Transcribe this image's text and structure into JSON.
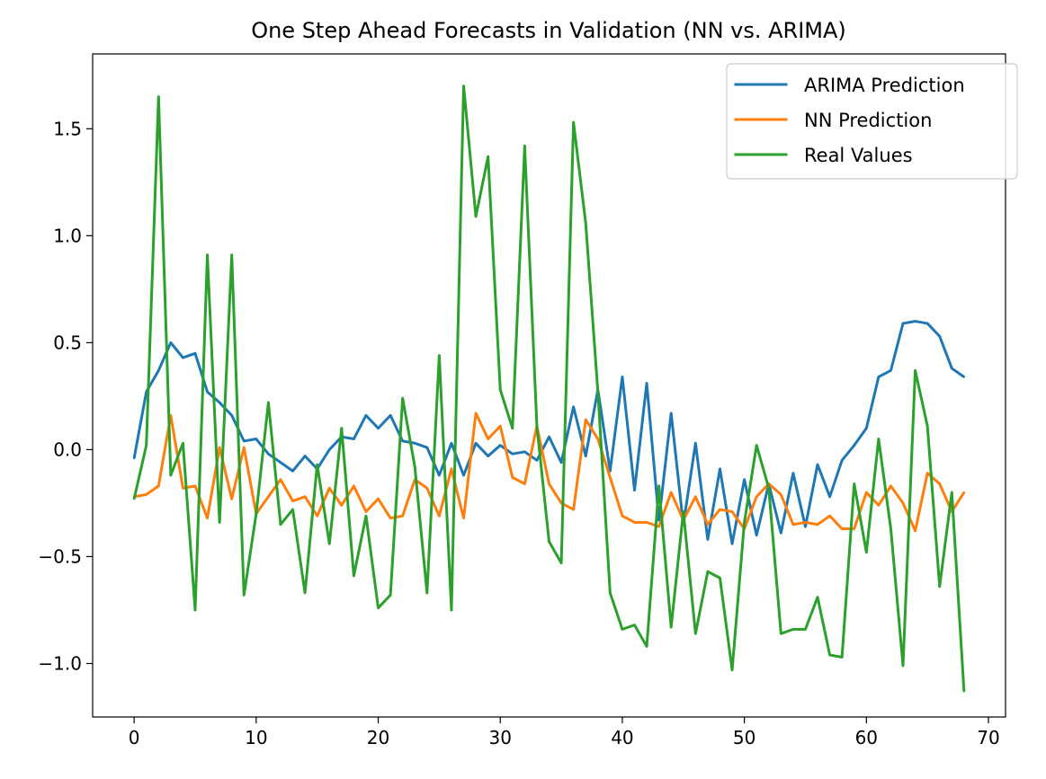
{
  "chart_data": {
    "type": "line",
    "title": "One Step Ahead Forecasts in Validation (NN vs. ARIMA)",
    "xlabel": "",
    "ylabel": "",
    "xlim": [
      -3.4,
      71.4
    ],
    "ylim": [
      -1.25,
      1.85
    ],
    "xticks": [
      0,
      10,
      20,
      30,
      40,
      50,
      60,
      70
    ],
    "yticks": [
      -1.0,
      -0.5,
      0.0,
      0.5,
      1.0,
      1.5
    ],
    "ytick_labels": [
      "−1.0",
      "−0.5",
      "0.0",
      "0.5",
      "1.0",
      "1.5"
    ],
    "grid": false,
    "legend_position": "top-right",
    "x": [
      0,
      1,
      2,
      3,
      4,
      5,
      6,
      7,
      8,
      9,
      10,
      11,
      12,
      13,
      14,
      15,
      16,
      17,
      18,
      19,
      20,
      21,
      22,
      23,
      24,
      25,
      26,
      27,
      28,
      29,
      30,
      31,
      32,
      33,
      34,
      35,
      36,
      37,
      38,
      39,
      40,
      41,
      42,
      43,
      44,
      45,
      46,
      47,
      48,
      49,
      50,
      51,
      52,
      53,
      54,
      55,
      56,
      57,
      58,
      59,
      60,
      61,
      62,
      63,
      64,
      65,
      66,
      67,
      68
    ],
    "series": [
      {
        "name": "ARIMA Prediction",
        "color": "#1f77b4",
        "values": [
          -0.04,
          0.27,
          0.37,
          0.5,
          0.43,
          0.45,
          0.27,
          0.22,
          0.16,
          0.04,
          0.05,
          -0.02,
          -0.06,
          -0.1,
          -0.03,
          -0.09,
          0.0,
          0.06,
          0.05,
          0.16,
          0.1,
          0.16,
          0.04,
          0.03,
          0.01,
          -0.12,
          0.03,
          -0.12,
          0.03,
          -0.03,
          0.02,
          -0.02,
          -0.01,
          -0.05,
          0.06,
          -0.06,
          0.2,
          -0.03,
          0.28,
          -0.1,
          0.34,
          -0.19,
          0.31,
          -0.33,
          0.17,
          -0.35,
          0.03,
          -0.42,
          -0.09,
          -0.44,
          -0.14,
          -0.4,
          -0.16,
          -0.39,
          -0.11,
          -0.36,
          -0.07,
          -0.22,
          -0.05,
          0.02,
          0.1,
          0.34,
          0.37,
          0.59,
          0.6,
          0.59,
          0.53,
          0.38,
          0.34
        ]
      },
      {
        "name": "NN Prediction",
        "color": "#ff7f0e",
        "values": [
          -0.22,
          -0.21,
          -0.17,
          0.16,
          -0.18,
          -0.17,
          -0.32,
          0.01,
          -0.23,
          0.01,
          -0.3,
          -0.22,
          -0.14,
          -0.24,
          -0.22,
          -0.31,
          -0.18,
          -0.26,
          -0.17,
          -0.29,
          -0.23,
          -0.32,
          -0.31,
          -0.14,
          -0.18,
          -0.31,
          -0.09,
          -0.32,
          0.17,
          0.05,
          0.11,
          -0.13,
          -0.16,
          0.11,
          -0.16,
          -0.25,
          -0.28,
          0.14,
          0.05,
          -0.13,
          -0.31,
          -0.34,
          -0.34,
          -0.36,
          -0.2,
          -0.33,
          -0.22,
          -0.35,
          -0.28,
          -0.29,
          -0.37,
          -0.22,
          -0.16,
          -0.21,
          -0.35,
          -0.34,
          -0.35,
          -0.31,
          -0.37,
          -0.37,
          -0.2,
          -0.26,
          -0.17,
          -0.25,
          -0.38,
          -0.11,
          -0.16,
          -0.29,
          -0.2
        ]
      },
      {
        "name": "Real Values",
        "color": "#2ca02c",
        "values": [
          -0.23,
          0.02,
          1.65,
          -0.12,
          0.03,
          -0.75,
          0.91,
          -0.34,
          0.91,
          -0.68,
          -0.3,
          0.22,
          -0.35,
          -0.28,
          -0.67,
          -0.07,
          -0.44,
          0.1,
          -0.59,
          -0.31,
          -0.74,
          -0.68,
          0.24,
          -0.08,
          -0.67,
          0.44,
          -0.75,
          1.7,
          1.09,
          1.37,
          0.28,
          0.1,
          1.42,
          0.11,
          -0.43,
          -0.53,
          1.53,
          1.06,
          0.27,
          -0.67,
          -0.84,
          -0.82,
          -0.92,
          -0.17,
          -0.83,
          -0.29,
          -0.86,
          -0.57,
          -0.6,
          -1.03,
          -0.34,
          0.02,
          -0.18,
          -0.86,
          -0.84,
          -0.84,
          -0.69,
          -0.96,
          -0.97,
          -0.16,
          -0.48,
          0.05,
          -0.37,
          -1.01,
          0.37,
          0.11,
          -0.64,
          -0.2,
          -1.13
        ]
      }
    ]
  }
}
